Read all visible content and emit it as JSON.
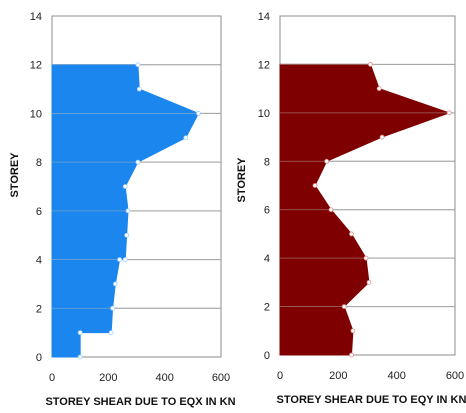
{
  "chart_data": [
    {
      "type": "area",
      "title": "",
      "xlabel": "STOREY SHEAR DUE TO EQX IN KN",
      "ylabel": "STOREY",
      "xlim": [
        0,
        600
      ],
      "ylim": [
        0,
        14
      ],
      "xticks": [
        "0",
        "200",
        "400",
        "600"
      ],
      "yticks": [
        "0",
        "2",
        "4",
        "6",
        "8",
        "10",
        "12",
        "14"
      ],
      "grid": true,
      "color": "#1a86ee",
      "series": [
        {
          "points": [
            {
              "storey": 0,
              "shear": 100
            },
            {
              "storey": 1,
              "shear": 100
            },
            {
              "storey": 1,
              "shear": 210
            },
            {
              "storey": 2,
              "shear": 215
            },
            {
              "storey": 3,
              "shear": 225
            },
            {
              "storey": 4,
              "shear": 240
            },
            {
              "storey": 4,
              "shear": 260
            },
            {
              "storey": 5,
              "shear": 265
            },
            {
              "storey": 6,
              "shear": 270
            },
            {
              "storey": 7,
              "shear": 260
            },
            {
              "storey": 8,
              "shear": 305
            },
            {
              "storey": 9,
              "shear": 475
            },
            {
              "storey": 10,
              "shear": 520
            },
            {
              "storey": 11,
              "shear": 310
            },
            {
              "storey": 12,
              "shear": 305
            }
          ]
        }
      ]
    },
    {
      "type": "area",
      "title": "",
      "xlabel": "STOREY SHEAR DUE TO EQY IN KN",
      "ylabel": "STOREY",
      "xlim": [
        0,
        600
      ],
      "ylim": [
        0,
        14
      ],
      "xticks": [
        "0",
        "200",
        "400",
        "600"
      ],
      "yticks": [
        "0",
        "2",
        "4",
        "6",
        "8",
        "10",
        "12",
        "14"
      ],
      "grid": true,
      "color": "#7f0000",
      "series": [
        {
          "points": [
            {
              "storey": 0,
              "shear": 245
            },
            {
              "storey": 1,
              "shear": 250
            },
            {
              "storey": 2,
              "shear": 220
            },
            {
              "storey": 3,
              "shear": 305
            },
            {
              "storey": 4,
              "shear": 295
            },
            {
              "storey": 5,
              "shear": 245
            },
            {
              "storey": 6,
              "shear": 175
            },
            {
              "storey": 7,
              "shear": 120
            },
            {
              "storey": 8,
              "shear": 160
            },
            {
              "storey": 9,
              "shear": 350
            },
            {
              "storey": 10,
              "shear": 580
            },
            {
              "storey": 11,
              "shear": 340
            },
            {
              "storey": 12,
              "shear": 310
            }
          ]
        }
      ]
    }
  ]
}
